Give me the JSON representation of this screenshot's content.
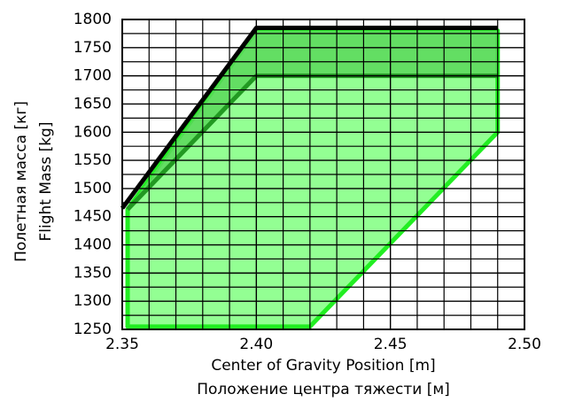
{
  "chart_data": {
    "type": "line",
    "xlabel": "Center of Gravity Position [m]",
    "xlabel_secondary": "Положение центра тяжести [м]",
    "ylabel": "Flight Mass [kg]",
    "ylabel_secondary": "Полетная масса [кг]",
    "xlim": [
      2.35,
      2.5
    ],
    "xticks": [
      2.35,
      {
        "value": 2.4,
        "label": "2.40"
      },
      2.45,
      {
        "value": 2.5,
        "label": "2.50"
      }
    ],
    "ylim": [
      1250,
      1800
    ],
    "yticks": [
      1250,
      1300,
      1350,
      1400,
      1450,
      1500,
      1550,
      1600,
      1650,
      1700,
      1750,
      1800
    ],
    "grid": true,
    "minor_per_major": {
      "x": 5,
      "y": 2
    },
    "series": [
      {
        "color": "#22ee22",
        "fill": "#80ff80",
        "x": [
          2.352,
          2.352,
          2.4,
          2.49,
          2.49,
          2.42
        ],
        "y": [
          1255,
          1463,
          1780,
          1780,
          1600,
          1255
        ]
      },
      {
        "color": "none",
        "fill": "#5ad85a",
        "x": [
          2.352,
          2.4,
          2.49,
          2.49,
          2.4
        ],
        "y": [
          1463,
          1780,
          1780,
          1700,
          1700
        ]
      },
      {
        "color": "#000000",
        "x": [
          2.35,
          2.4,
          2.49
        ],
        "y": [
          1465,
          1785,
          1785
        ]
      },
      {
        "color": "#229922",
        "x": [
          2.352,
          2.4,
          2.49
        ],
        "y": [
          1463,
          1700,
          1700
        ]
      }
    ]
  }
}
